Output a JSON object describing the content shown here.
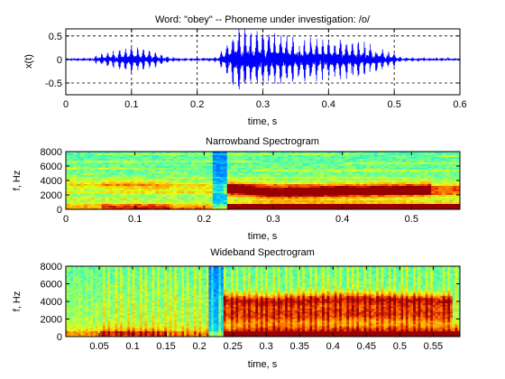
{
  "chart_data": [
    {
      "type": "line",
      "title": "Word: \"obey\" --  Phoneme under investigation: /o/",
      "xlabel": "time, s",
      "ylabel": "x(t)",
      "xlim": [
        0,
        0.6
      ],
      "ylim": [
        -0.75,
        0.65
      ],
      "xticks": [
        0,
        0.1,
        0.2,
        0.3,
        0.4,
        0.5,
        0.6
      ],
      "xtick_labels": [
        "0",
        "0.1",
        "0.2",
        "0.3",
        "0.4",
        "0.5",
        "0.6"
      ],
      "yticks": [
        -0.5,
        0,
        0.5
      ],
      "ytick_labels": [
        "-0.5",
        "0",
        "0.5"
      ],
      "grid": "dashed",
      "series_color": "#0000ff",
      "envelope": {
        "t": [
          0,
          0.04,
          0.05,
          0.08,
          0.1,
          0.12,
          0.14,
          0.16,
          0.2,
          0.23,
          0.245,
          0.26,
          0.3,
          0.35,
          0.4,
          0.45,
          0.5,
          0.51,
          0.6
        ],
        "amp": [
          0.02,
          0.03,
          0.12,
          0.2,
          0.3,
          0.22,
          0.15,
          0.04,
          0.02,
          0.05,
          0.35,
          0.7,
          0.6,
          0.5,
          0.45,
          0.4,
          0.15,
          0.04,
          0.02
        ]
      }
    },
    {
      "type": "heatmap",
      "title": "Narrowband Spectrogram",
      "xlabel": "time, s",
      "ylabel": "f, Hz",
      "xlim": [
        0,
        0.57
      ],
      "ylim": [
        0,
        8000
      ],
      "xticks": [
        0,
        0.1,
        0.2,
        0.3,
        0.4,
        0.5
      ],
      "xtick_labels": [
        "0",
        "0.1",
        "0.2",
        "0.3",
        "0.4",
        "0.5"
      ],
      "yticks": [
        0,
        2000,
        4000,
        6000,
        8000
      ],
      "ytick_labels": [
        "0",
        "2000",
        "4000",
        "6000",
        "8000"
      ],
      "formants": [
        {
          "t": [
            0,
            0.15,
            0.22,
            0.3,
            0.4,
            0.5,
            0.57
          ],
          "f": [
            300,
            300,
            250,
            400,
            450,
            400,
            350
          ],
          "w": 500
        },
        {
          "t": [
            0,
            0.12,
            0.22,
            0.3,
            0.4,
            0.5,
            0.57
          ],
          "f": [
            3500,
            3300,
            2800,
            2200,
            2500,
            2600,
            2700
          ],
          "w": 800
        },
        {
          "t": [
            0.24,
            0.3,
            0.38,
            0.45,
            0.52
          ],
          "f": [
            3000,
            2600,
            2600,
            2700,
            2800
          ],
          "w": 900
        }
      ]
    },
    {
      "type": "heatmap",
      "title": "Wideband Spectrogram",
      "xlabel": "time, s",
      "ylabel": "f, Hz",
      "xlim": [
        0,
        0.59
      ],
      "ylim": [
        0,
        8000
      ],
      "xticks": [
        0.05,
        0.1,
        0.15,
        0.2,
        0.25,
        0.3,
        0.35,
        0.4,
        0.45,
        0.5,
        0.55
      ],
      "xtick_labels": [
        "0.05",
        "0.1",
        "0.15",
        "0.2",
        "0.25",
        "0.3",
        "0.35",
        "0.4",
        "0.45",
        "0.5",
        "0.55"
      ],
      "yticks": [
        0,
        2000,
        4000,
        6000,
        8000
      ],
      "ytick_labels": [
        "0",
        "2000",
        "4000",
        "6000",
        "8000"
      ],
      "formants": [
        {
          "t": [
            0,
            0.15,
            0.22,
            0.3,
            0.45,
            0.59
          ],
          "f": [
            400,
            350,
            250,
            500,
            550,
            450
          ],
          "w": 700
        },
        {
          "t": [
            0.24,
            0.3,
            0.4,
            0.5,
            0.57
          ],
          "f": [
            2600,
            2500,
            2700,
            2700,
            2600
          ],
          "w": 1200
        },
        {
          "t": [
            0.24,
            0.3,
            0.4,
            0.5,
            0.57
          ],
          "f": [
            4200,
            4000,
            4300,
            4200,
            4100
          ],
          "w": 700
        }
      ]
    }
  ]
}
